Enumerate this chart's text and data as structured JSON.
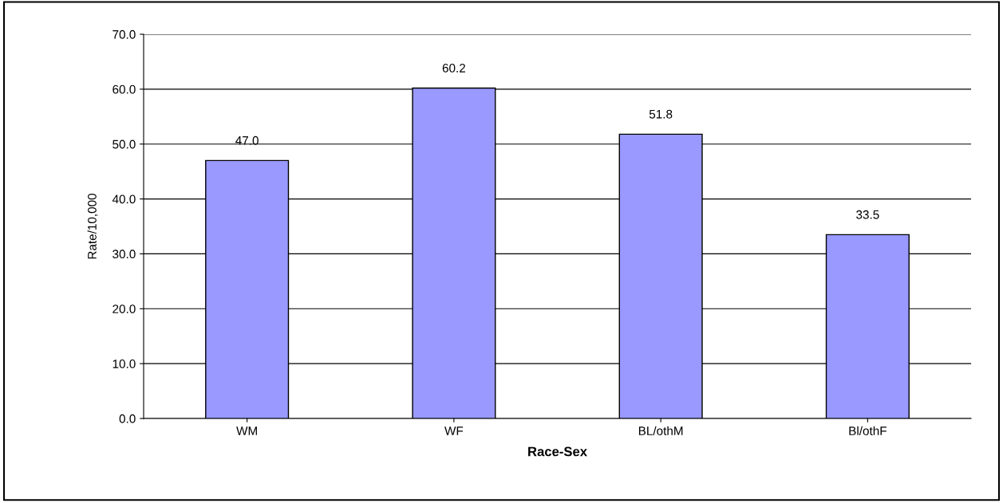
{
  "chart_data": {
    "type": "bar",
    "xlabel": "Race-Sex",
    "ylabel": "Rate/10,000",
    "categories": [
      "WM",
      "WF",
      "BL/othM",
      "Bl/othF"
    ],
    "values": [
      47.0,
      60.2,
      51.8,
      33.5
    ],
    "value_labels": [
      "47.0",
      "60.2",
      "51.8",
      "33.5"
    ],
    "color": "#9999ff",
    "ylim": [
      0,
      70
    ],
    "yticks": [
      {
        "value": 0,
        "label": "0.0"
      },
      {
        "value": 10,
        "label": "10.0"
      },
      {
        "value": 20,
        "label": "20.0"
      },
      {
        "value": 30,
        "label": "30.0"
      },
      {
        "value": 40,
        "label": "40.0"
      },
      {
        "value": 50,
        "label": "50.0"
      },
      {
        "value": 60,
        "label": "60.0"
      },
      {
        "value": 70,
        "label": "70.0"
      }
    ],
    "grid": "y",
    "legend": false
  }
}
